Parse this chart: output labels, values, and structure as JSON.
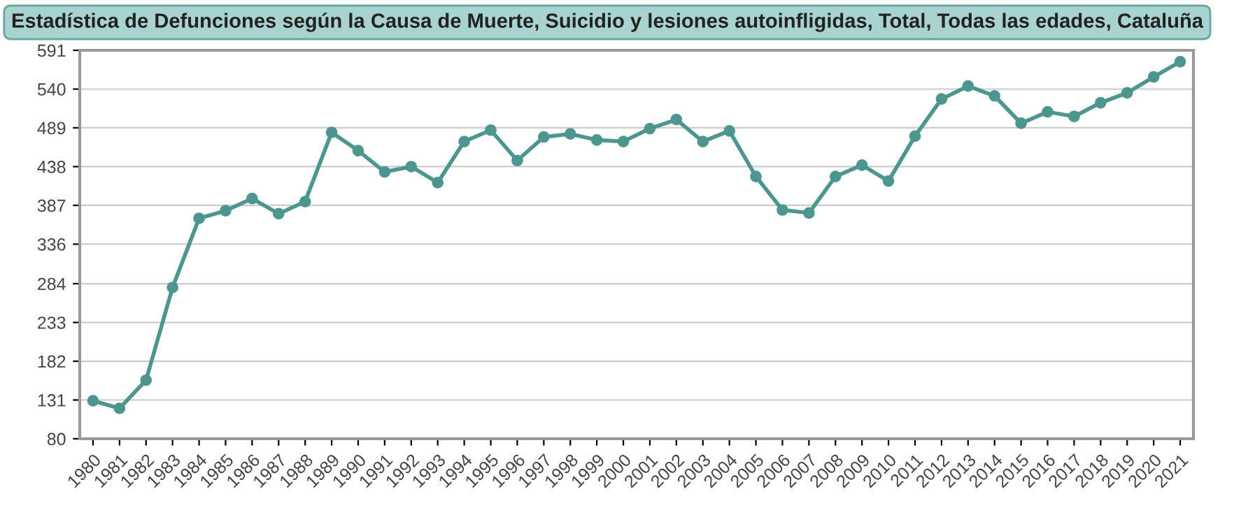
{
  "chart_data": {
    "type": "line",
    "title": "Estadística de Defunciones según la Causa de Muerte, Suicidio y lesiones autoinfligidas, Total, Todas las edades, Cataluña",
    "categories": [
      "1980",
      "1981",
      "1982",
      "1983",
      "1984",
      "1985",
      "1986",
      "1987",
      "1988",
      "1989",
      "1990",
      "1991",
      "1992",
      "1993",
      "1994",
      "1995",
      "1996",
      "1997",
      "1998",
      "1999",
      "2000",
      "2001",
      "2002",
      "2003",
      "2004",
      "2005",
      "2006",
      "2007",
      "2008",
      "2009",
      "2010",
      "2011",
      "2012",
      "2013",
      "2014",
      "2015",
      "2016",
      "2017",
      "2018",
      "2019",
      "2020",
      "2021"
    ],
    "series": [
      {
        "color": "#4d9690",
        "values": [
          130,
          120,
          157,
          279,
          370,
          380,
          396,
          376,
          392,
          483,
          459,
          431,
          438,
          417,
          471,
          486,
          446,
          477,
          481,
          473,
          471,
          488,
          500,
          471,
          485,
          425,
          381,
          377,
          425,
          440,
          419,
          478,
          527,
          544,
          531,
          495,
          510,
          504,
          522,
          535,
          556,
          576
        ]
      }
    ],
    "ylim": [
      80,
      591
    ],
    "yticks": [
      80,
      131,
      182,
      233,
      284,
      336,
      387,
      438,
      489,
      540,
      591
    ],
    "grid": "y",
    "marker": "circle",
    "line_style": "solid",
    "legend": false
  }
}
